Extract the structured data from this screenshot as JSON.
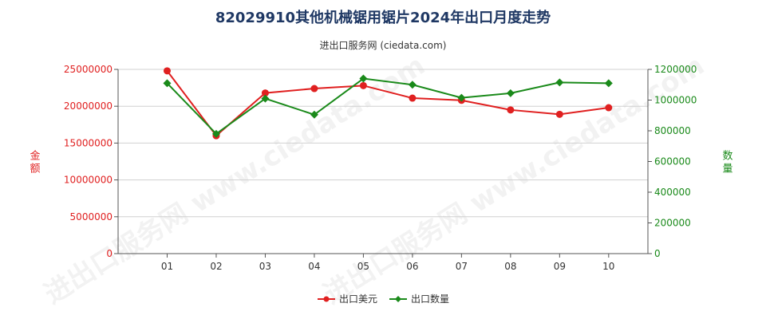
{
  "chart_data": {
    "type": "line",
    "title": "82029910其他机械锯用锯片2024年出口月度走势",
    "subtitle": "进出口服务网 (ciedata.com)",
    "categories": [
      "01",
      "02",
      "03",
      "04",
      "05",
      "06",
      "07",
      "08",
      "09",
      "10"
    ],
    "y_left": {
      "label": "金额",
      "min": 0,
      "max": 25000000,
      "ticks": [
        0,
        5000000,
        10000000,
        15000000,
        20000000,
        25000000
      ],
      "color": "#e02020"
    },
    "y_right": {
      "label": "数量",
      "min": 0,
      "max": 1200000,
      "ticks": [
        0,
        200000,
        400000,
        600000,
        800000,
        1000000,
        1200000
      ],
      "color": "#1a8a1a"
    },
    "grid": true,
    "legend_position": "bottom-center",
    "series": [
      {
        "name": "出口美元",
        "axis": "left",
        "color": "#e02020",
        "values": [
          24800000,
          16000000,
          21800000,
          22400000,
          22800000,
          21100000,
          20800000,
          19500000,
          18900000,
          19800000
        ]
      },
      {
        "name": "出口数量",
        "axis": "right",
        "color": "#1a8a1a",
        "values": [
          1110000,
          780000,
          1010000,
          905000,
          1140000,
          1100000,
          1015000,
          1045000,
          1115000,
          1110000
        ]
      }
    ],
    "watermark": "进出口服务网 www.ciedata.com"
  }
}
